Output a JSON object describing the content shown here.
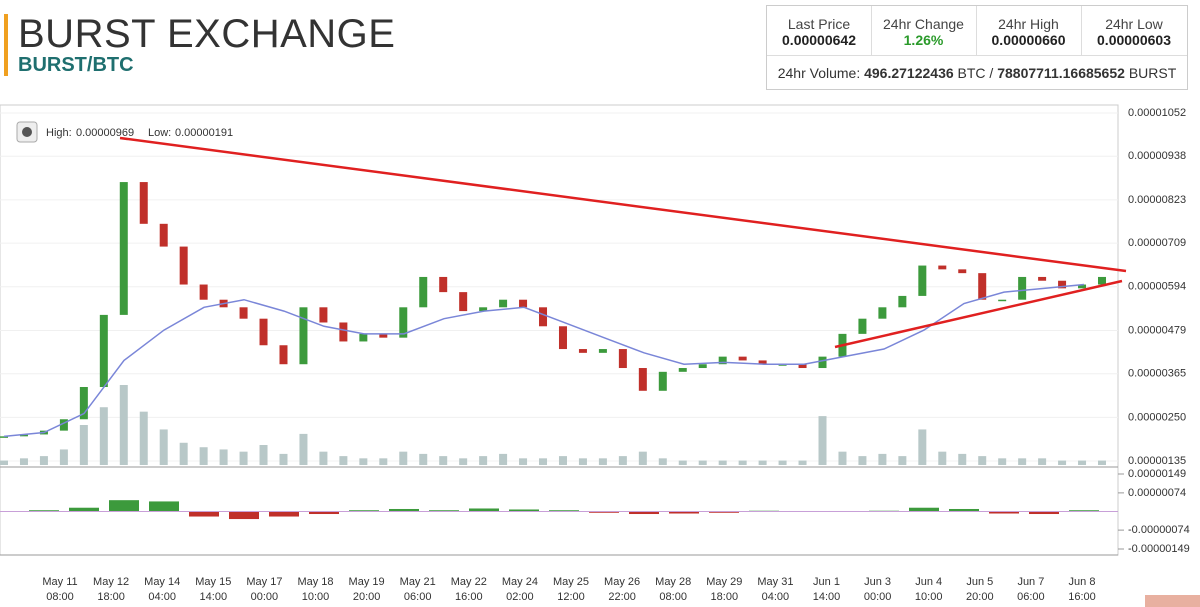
{
  "header": {
    "title": "BURST EXCHANGE",
    "pair": "BURST/BTC"
  },
  "stats": {
    "cells": [
      {
        "label": "Last Price",
        "value": "0.00000642"
      },
      {
        "label": "24hr Change",
        "value": "1.26%"
      },
      {
        "label": "24hr High",
        "value": "0.00000660"
      },
      {
        "label": "24hr Low",
        "value": "0.00000603"
      }
    ],
    "volume_label": "24hr Volume:",
    "volume_btc": "496.27122436",
    "btc": "BTC /",
    "volume_burst": "78807711.16685652",
    "burst": "BURST"
  },
  "chart_data": {
    "type": "candlestick",
    "info": {
      "high_label": "High:",
      "high": "0.00000969",
      "low_label": "Low:",
      "low": "0.00000191"
    },
    "values": [
      2e-06,
      2.05e-06,
      2.15e-06,
      2.45e-06,
      3.3e-06,
      5.2e-06,
      8.7e-06,
      7.6e-06,
      7e-06,
      6e-06,
      5.6e-06,
      5.4e-06,
      5.1e-06,
      4.4e-06,
      3.9e-06,
      5.4e-06,
      5e-06,
      4.5e-06,
      4.7e-06,
      4.6e-06,
      5.4e-06,
      6.2e-06,
      5.8e-06,
      5.3e-06,
      5.4e-06,
      5.6e-06,
      5.4e-06,
      4.9e-06,
      4.3e-06,
      4.2e-06,
      4.3e-06,
      3.8e-06,
      3.2e-06,
      3.7e-06,
      3.8e-06,
      3.9e-06,
      4.1e-06,
      4e-06,
      3.9e-06,
      3.9e-06,
      3.8e-06,
      4.1e-06,
      4.7e-06,
      5.1e-06,
      5.4e-06,
      5.7e-06,
      6.5e-06,
      6.4e-06,
      6.3e-06,
      5.6e-06,
      5.6e-06,
      6.2e-06,
      6.1e-06,
      5.9e-06,
      6e-06,
      6.2e-06
    ],
    "ma": {
      "color": "#7a86d8",
      "values": [
        2e-06,
        2.1e-06,
        2.6e-06,
        4e-06,
        4.8e-06,
        5.4e-06,
        5.6e-06,
        5.3e-06,
        4.9e-06,
        4.7e-06,
        4.7e-06,
        5.1e-06,
        5.3e-06,
        5.4e-06,
        5e-06,
        4.6e-06,
        4.2e-06,
        3.9e-06,
        3.95e-06,
        3.9e-06,
        3.9e-06,
        4.1e-06,
        4.3e-06,
        4.8e-06,
        5.5e-06,
        5.8e-06,
        5.9e-06,
        6e-06
      ]
    },
    "volume": [
      10,
      15,
      20,
      35,
      90,
      130,
      180,
      120,
      80,
      50,
      40,
      35,
      30,
      45,
      25,
      70,
      30,
      20,
      15,
      15,
      30,
      25,
      20,
      15,
      20,
      25,
      15,
      15,
      20,
      15,
      15,
      20,
      30,
      15,
      10,
      10,
      10,
      10,
      10,
      10,
      10,
      110,
      30,
      20,
      25,
      20,
      80,
      30,
      25,
      20,
      15,
      15,
      15,
      10,
      10,
      10
    ],
    "macd": [
      0,
      5e-08,
      1.5e-07,
      4.5e-07,
      4e-07,
      -2e-07,
      -3e-07,
      -2e-07,
      -1e-07,
      5e-08,
      1e-07,
      5e-08,
      1.2e-07,
      8e-08,
      5e-08,
      -5e-08,
      -1e-07,
      -8e-08,
      -5e-08,
      3e-08,
      2e-08,
      2e-08,
      3e-08,
      1.5e-07,
      1e-07,
      -8e-08,
      -1e-07,
      5e-08
    ],
    "up_color": "#3c9a3c",
    "down_color": "#c0302a",
    "ylim": [
      1.35e-06,
      1.052e-05
    ],
    "yticks": [
      {
        "value": 1.052e-05,
        "label": "0.00001052"
      },
      {
        "value": 9.38e-06,
        "label": "0.00000938"
      },
      {
        "value": 8.23e-06,
        "label": "0.00000823"
      },
      {
        "value": 7.09e-06,
        "label": "0.00000709"
      },
      {
        "value": 5.94e-06,
        "label": "0.00000594"
      },
      {
        "value": 4.79e-06,
        "label": "0.00000479"
      },
      {
        "value": 3.65e-06,
        "label": "0.00000365"
      },
      {
        "value": 2.5e-06,
        "label": "0.00000250"
      },
      {
        "value": 1.35e-06,
        "label": "0.00000135"
      }
    ],
    "y2lim": [
      -1.49e-06,
      1.49e-06
    ],
    "y2ticks": [
      {
        "value": 1.49e-06,
        "label": "0.00000149"
      },
      {
        "value": 7.4e-07,
        "label": "0.00000074"
      },
      {
        "value": -7.4e-07,
        "label": "-0.00000074"
      },
      {
        "value": -1.49e-06,
        "label": "-0.00000149"
      }
    ],
    "xticks": [
      [
        "May 11",
        "08:00"
      ],
      [
        "May 12",
        "18:00"
      ],
      [
        "May 14",
        "04:00"
      ],
      [
        "May 15",
        "14:00"
      ],
      [
        "May 17",
        "00:00"
      ],
      [
        "May 18",
        "10:00"
      ],
      [
        "May 19",
        "20:00"
      ],
      [
        "May 21",
        "06:00"
      ],
      [
        "May 22",
        "16:00"
      ],
      [
        "May 24",
        "02:00"
      ],
      [
        "May 25",
        "12:00"
      ],
      [
        "May 26",
        "22:00"
      ],
      [
        "May 28",
        "08:00"
      ],
      [
        "May 29",
        "18:00"
      ],
      [
        "May 31",
        "04:00"
      ],
      [
        "Jun 1",
        "14:00"
      ],
      [
        "Jun 3",
        "00:00"
      ],
      [
        "Jun 4",
        "10:00"
      ],
      [
        "Jun 5",
        "20:00"
      ],
      [
        "Jun 7",
        "06:00"
      ],
      [
        "Jun 8",
        "16:00"
      ]
    ]
  }
}
